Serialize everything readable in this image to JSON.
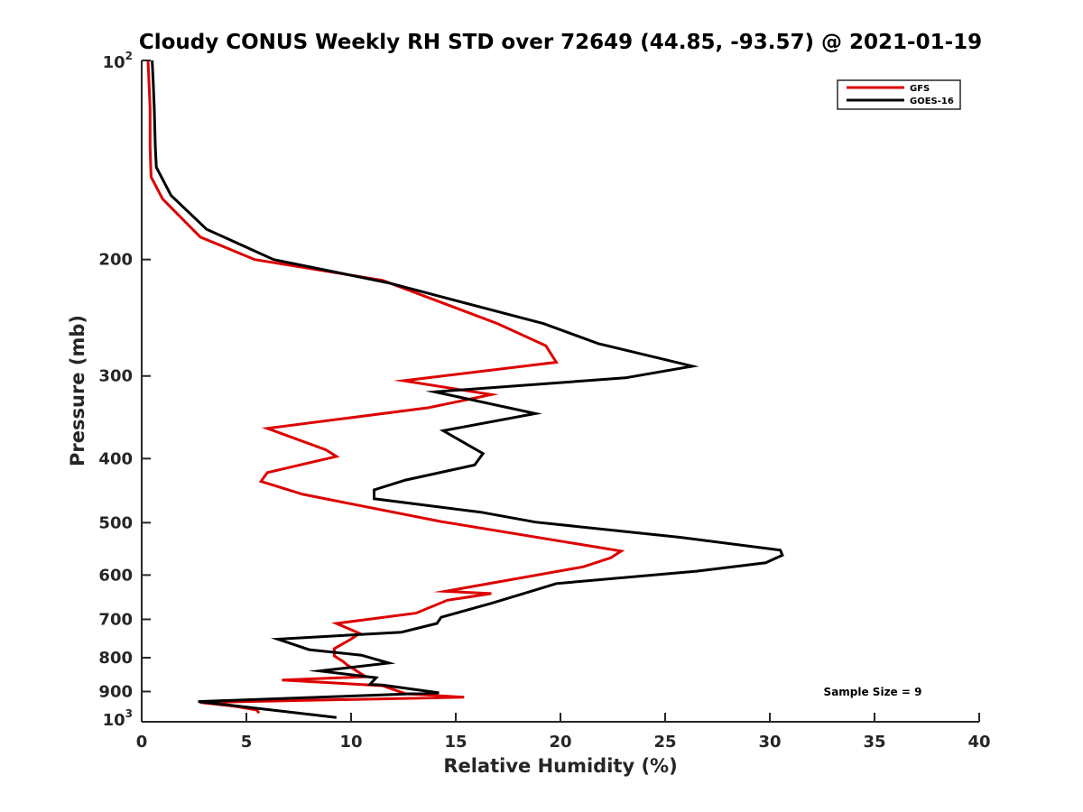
{
  "chart_data": {
    "type": "line",
    "title": "Cloudy CONUS Weekly RH STD over 72649 (44.85, -93.57) @ 2021-01-19",
    "xlabel": "Relative Humidity (%)",
    "ylabel": "Pressure (mb)",
    "xlim": [
      0,
      40
    ],
    "ylim": [
      100,
      1000
    ],
    "yscale": "log",
    "y_reversed": true,
    "grid": false,
    "legend_position": "top-right",
    "x_ticks": [
      "0",
      "5",
      "10",
      "15",
      "20",
      "25",
      "30",
      "35",
      "40"
    ],
    "x_tick_values": [
      0,
      5,
      10,
      15,
      20,
      25,
      30,
      35,
      40
    ],
    "y_ticks": [
      {
        "value": 100,
        "base": "10",
        "sup": "2"
      },
      {
        "value": 200,
        "base": "200",
        "sup": ""
      },
      {
        "value": 300,
        "base": "300",
        "sup": ""
      },
      {
        "value": 400,
        "base": "400",
        "sup": ""
      },
      {
        "value": 500,
        "base": "500",
        "sup": ""
      },
      {
        "value": 600,
        "base": "600",
        "sup": ""
      },
      {
        "value": 700,
        "base": "700",
        "sup": ""
      },
      {
        "value": 800,
        "base": "800",
        "sup": ""
      },
      {
        "value": 900,
        "base": "900",
        "sup": ""
      },
      {
        "value": 1000,
        "base": "10",
        "sup": "3"
      }
    ],
    "series": [
      {
        "name": "GFS",
        "color": "#dd0000",
        "x": [
          0.3,
          0.35,
          0.4,
          0.4,
          0.45,
          1.0,
          2.8,
          5.4,
          11.5,
          17.0,
          19.3,
          19.8,
          12.5,
          16.7,
          13.7,
          6.0,
          8.8,
          9.3,
          6.0,
          5.7,
          7.7,
          14.3,
          22.9,
          22.4,
          21.1,
          14.5,
          16.7,
          14.6,
          13.1,
          9.3,
          10.4,
          10.0,
          9.2,
          9.2,
          9.6,
          9.8,
          10.7,
          6.7,
          11.5,
          12.6,
          15.4,
          2.8,
          4.5,
          5.5,
          5.6
        ],
        "y": [
          100,
          108,
          118,
          135,
          150,
          162,
          185,
          200,
          215,
          250,
          270,
          286,
          305,
          320,
          335,
          360,
          388,
          397,
          420,
          433,
          453,
          498,
          552,
          565,
          583,
          635,
          640,
          655,
          685,
          710,
          735,
          750,
          775,
          795,
          810,
          820,
          855,
          865,
          882,
          907,
          918,
          935,
          948,
          960,
          970
        ]
      },
      {
        "name": "GOES-16",
        "color": "#000000",
        "x": [
          0.5,
          0.55,
          0.6,
          0.65,
          0.7,
          1.4,
          3.1,
          6.3,
          11.8,
          19.2,
          21.8,
          26.3,
          23.1,
          14.0,
          18.8,
          14.4,
          16.3,
          15.9,
          12.6,
          11.1,
          11.1,
          16.2,
          18.8,
          25.7,
          30.5,
          30.6,
          29.8,
          26.5,
          19.8,
          18.8,
          16.7,
          14.3,
          14.1,
          12.4,
          6.5,
          8.0,
          10.5,
          11.8,
          8.5,
          11.2,
          10.9,
          11.5,
          14.2,
          2.7,
          9.3
        ],
        "y": [
          100,
          108,
          118,
          135,
          145,
          160,
          180,
          200,
          217,
          250,
          268,
          290,
          302,
          317,
          342,
          363,
          393,
          409,
          431,
          446,
          460,
          482,
          499,
          526,
          550,
          560,
          575,
          592,
          618,
          632,
          662,
          695,
          710,
          732,
          750,
          778,
          793,
          815,
          838,
          858,
          878,
          880,
          904,
          932,
          985
        ]
      }
    ],
    "annotations": [
      "Sample Size = 9"
    ]
  }
}
